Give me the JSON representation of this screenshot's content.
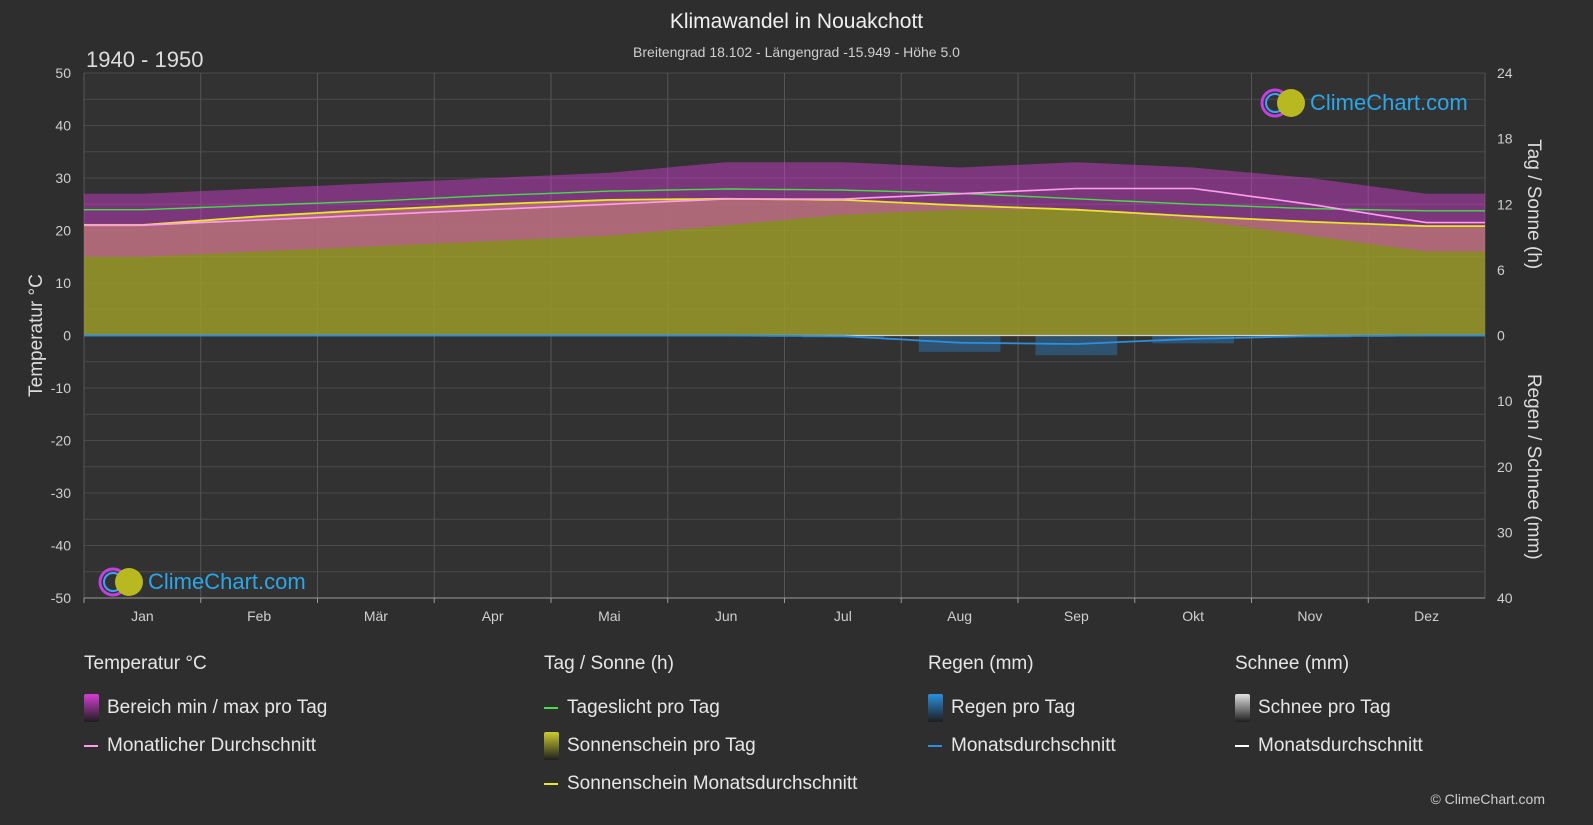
{
  "title": "Klimawandel in Nouakchott",
  "subtitle": "Breitengrad 18.102 - Längengrad -15.949 - Höhe 5.0",
  "period": "1940 - 1950",
  "logo_text": "ClimeChart.com",
  "copyright": "© ClimeChart.com",
  "colors": {
    "background": "#2e2e2e",
    "temp_range": "#d63ed6",
    "temp_avg": "#ff9cf0",
    "daylight": "#44dd44",
    "sunshine_fill": "#9a9a2a",
    "sunshine_avg": "#e6e62a",
    "rain": "#2a8fe0",
    "snow": "#ffffff"
  },
  "chart_data": {
    "type": "line",
    "categories": [
      "Jan",
      "Feb",
      "Mär",
      "Apr",
      "Mai",
      "Jun",
      "Jul",
      "Aug",
      "Sep",
      "Okt",
      "Nov",
      "Dez"
    ],
    "left_axis": {
      "label": "Temperatur °C",
      "ylim": [
        -50,
        50
      ],
      "ticks": [
        50,
        40,
        30,
        20,
        10,
        0,
        -10,
        -20,
        -30,
        -40,
        -50
      ]
    },
    "right_axis_top": {
      "label": "Tag / Sonne (h)",
      "ylim": [
        0,
        24
      ],
      "ticks": [
        24,
        18,
        12,
        6,
        0
      ]
    },
    "right_axis_bottom": {
      "label": "Regen / Schnee (mm)",
      "ylim": [
        0,
        40
      ],
      "ticks": [
        0,
        10,
        20,
        30,
        40
      ]
    },
    "grid": true,
    "series": [
      {
        "name": "Bereich min / max pro Tag",
        "kind": "range",
        "unit": "°C",
        "min": [
          15,
          16,
          17,
          18,
          19,
          21,
          23,
          24,
          24,
          22,
          19,
          16
        ],
        "max": [
          27,
          28,
          29,
          30,
          31,
          33,
          33,
          32,
          33,
          32,
          30,
          27
        ]
      },
      {
        "name": "Monatlicher Durchschnitt",
        "kind": "line",
        "unit": "°C",
        "values": [
          21,
          22,
          23,
          24,
          25,
          26,
          26,
          27,
          28,
          28,
          25,
          21.5
        ]
      },
      {
        "name": "Tageslicht pro Tag",
        "kind": "line",
        "unit": "h",
        "values": [
          11.5,
          11.9,
          12.3,
          12.8,
          13.2,
          13.4,
          13.3,
          13.0,
          12.5,
          12.0,
          11.6,
          11.4
        ]
      },
      {
        "name": "Sonnenschein pro Tag",
        "kind": "area",
        "unit": "h",
        "values": [
          10.2,
          10.9,
          11.5,
          12.0,
          12.4,
          12.5,
          12.4,
          11.9,
          11.5,
          10.9,
          10.4,
          10.0
        ]
      },
      {
        "name": "Sonnenschein Monatsdurchschnitt",
        "kind": "line",
        "unit": "h",
        "values": [
          10.1,
          10.9,
          11.5,
          12.0,
          12.4,
          12.5,
          12.4,
          11.9,
          11.5,
          10.9,
          10.4,
          10.0
        ]
      },
      {
        "name": "Regen pro Tag",
        "kind": "bars",
        "unit": "mm",
        "values": [
          0.1,
          0.1,
          0.0,
          0.0,
          0.0,
          0.1,
          0.3,
          2.5,
          3.0,
          1.2,
          0.3,
          0.1
        ]
      },
      {
        "name": "Monatsdurchschnitt",
        "kind": "line",
        "unit": "mm",
        "values": [
          0.0,
          0.0,
          0.0,
          0.0,
          0.0,
          0.0,
          0.1,
          1.1,
          1.3,
          0.5,
          0.1,
          0.0
        ]
      }
    ]
  },
  "legend": {
    "groups": [
      {
        "header": "Temperatur °C",
        "items": [
          {
            "label": "Bereich min / max pro Tag",
            "kind": "rect",
            "color": "#d63ed6"
          },
          {
            "label": "Monatlicher Durchschnitt",
            "kind": "line",
            "color": "#ff9cf0"
          }
        ]
      },
      {
        "header": "Tag / Sonne (h)",
        "items": [
          {
            "label": "Tageslicht pro Tag",
            "kind": "line",
            "color": "#44dd44"
          },
          {
            "label": "Sonnenschein pro Tag",
            "kind": "rect",
            "color": "#cccc30"
          },
          {
            "label": "Sonnenschein Monatsdurchschnitt",
            "kind": "line",
            "color": "#e6e62a"
          }
        ]
      },
      {
        "header": "Regen (mm)",
        "items": [
          {
            "label": "Regen pro Tag",
            "kind": "rect",
            "color": "#2a8fe0"
          },
          {
            "label": "Monatsdurchschnitt",
            "kind": "line",
            "color": "#2a8fe0"
          }
        ]
      },
      {
        "header": "Schnee (mm)",
        "items": [
          {
            "label": "Schnee pro Tag",
            "kind": "rect",
            "color": "#e0e0e0"
          },
          {
            "label": "Monatsdurchschnitt",
            "kind": "line",
            "color": "#ffffff"
          }
        ]
      }
    ]
  }
}
